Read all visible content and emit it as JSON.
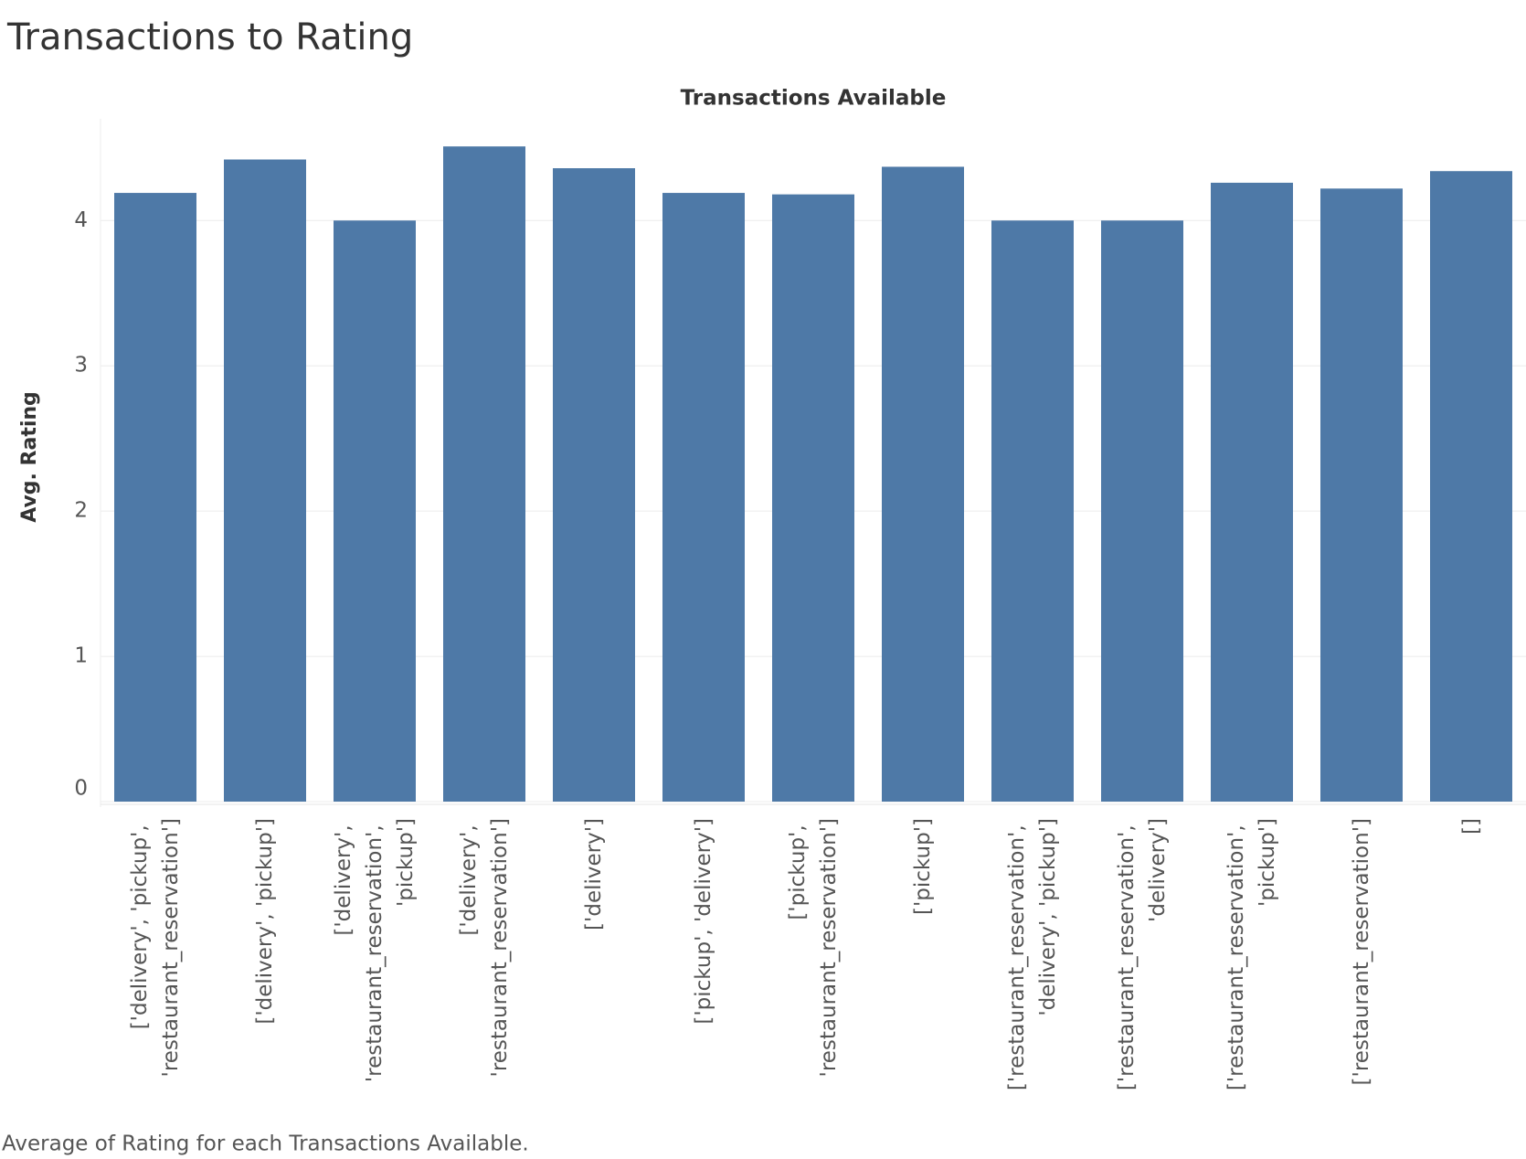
{
  "chart_data": {
    "type": "bar",
    "title": "Transactions to Rating",
    "x_label": "Transactions Available",
    "y_label": "Avg. Rating",
    "caption": "Average of Rating for each Transactions Available.",
    "categories": [
      "['delivery', 'pickup', 'restaurant_reservation']",
      "['delivery', 'pickup']",
      "['delivery', 'restaurant_reservation', 'pickup']",
      "['delivery', 'restaurant_reservation']",
      "['delivery']",
      "['pickup', 'delivery']",
      "['pickup', 'restaurant_reservation']",
      "['pickup']",
      "['restaurant_reservation', 'delivery', 'pickup']",
      "['restaurant_reservation', 'delivery']",
      "['restaurant_reservation', 'pickup']",
      "['restaurant_reservation']",
      "[]"
    ],
    "values": [
      4.19,
      4.42,
      4.0,
      4.51,
      4.36,
      4.19,
      4.18,
      4.37,
      4.0,
      4.0,
      4.26,
      4.22,
      4.34
    ],
    "color": "#4e79a7",
    "ylim": [
      0,
      4.7
    ],
    "yticks": [
      0,
      1,
      2,
      3,
      4
    ],
    "grid": true
  }
}
